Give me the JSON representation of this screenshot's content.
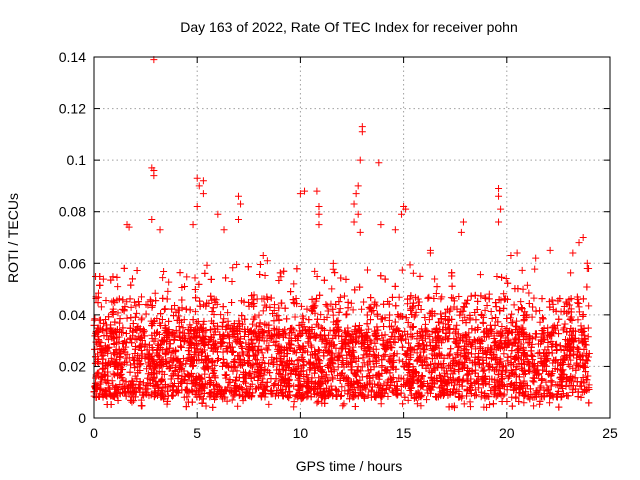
{
  "chart_data": {
    "type": "scatter",
    "title": "Day 163 of 2022, Rate Of TEC Index for receiver pohn",
    "xlabel": "GPS time / hours",
    "ylabel": "ROTI / TECUs",
    "xlim": [
      0,
      25
    ],
    "ylim": [
      0,
      0.14
    ],
    "xticks": [
      0,
      5,
      10,
      15,
      20,
      25
    ],
    "xtick_labels": [
      "0",
      "5",
      "10",
      "15",
      "20",
      "25"
    ],
    "yticks": [
      0,
      0.02,
      0.04,
      0.06,
      0.08,
      0.1,
      0.12,
      0.14
    ],
    "ytick_labels": [
      "0",
      "0.02",
      "0.04",
      "0.06",
      "0.08",
      "0.1",
      "0.12",
      "0.14"
    ],
    "grid": true,
    "marker": "+",
    "color": "#ff0000",
    "data_x_range": [
      0,
      24
    ],
    "series": [
      {
        "name": "ROTI",
        "points": [
          [
            2.9,
            0.139
          ],
          [
            13.0,
            0.113
          ],
          [
            13.0,
            0.111
          ],
          [
            12.9,
            0.1
          ],
          [
            13.8,
            0.099
          ],
          [
            2.8,
            0.097
          ],
          [
            2.9,
            0.096
          ],
          [
            2.9,
            0.094
          ],
          [
            5.0,
            0.093
          ],
          [
            5.3,
            0.092
          ],
          [
            5.1,
            0.09
          ],
          [
            12.8,
            0.09
          ],
          [
            19.6,
            0.089
          ],
          [
            10.8,
            0.088
          ],
          [
            5.3,
            0.087
          ],
          [
            10.0,
            0.087
          ],
          [
            10.2,
            0.088
          ],
          [
            12.7,
            0.087
          ],
          [
            7.0,
            0.086
          ],
          [
            19.6,
            0.086
          ],
          [
            7.1,
            0.083
          ],
          [
            12.6,
            0.083
          ],
          [
            15.0,
            0.082
          ],
          [
            5.0,
            0.082
          ],
          [
            10.9,
            0.082
          ],
          [
            15.1,
            0.081
          ],
          [
            19.7,
            0.081
          ],
          [
            10.9,
            0.079
          ],
          [
            6.0,
            0.079
          ],
          [
            12.8,
            0.079
          ],
          [
            14.9,
            0.079
          ],
          [
            2.8,
            0.077
          ],
          [
            7.0,
            0.077
          ],
          [
            12.6,
            0.076
          ],
          [
            17.9,
            0.076
          ],
          [
            19.6,
            0.076
          ],
          [
            1.6,
            0.075
          ],
          [
            4.8,
            0.075
          ],
          [
            10.9,
            0.075
          ],
          [
            13.9,
            0.075
          ],
          [
            1.7,
            0.074
          ],
          [
            3.2,
            0.073
          ],
          [
            6.3,
            0.073
          ],
          [
            12.9,
            0.072
          ],
          [
            14.6,
            0.073
          ],
          [
            17.8,
            0.072
          ],
          [
            16.3,
            0.065
          ],
          [
            16.3,
            0.064
          ],
          [
            20.2,
            0.063
          ],
          [
            22.1,
            0.065
          ],
          [
            23.2,
            0.064
          ],
          [
            23.5,
            0.068
          ],
          [
            23.7,
            0.07
          ],
          [
            23.9,
            0.06
          ],
          [
            23.9,
            0.058
          ],
          [
            0.1,
            0.047
          ],
          [
            20.5,
            0.064
          ],
          [
            21.4,
            0.062
          ],
          [
            8.2,
            0.063
          ],
          [
            8.4,
            0.061
          ]
        ]
      }
    ],
    "dense_band": {
      "description": "dense cloud of points between about 0.005 and 0.045 TECU/s across 0-24 h",
      "y_typical_min": 0.008,
      "y_typical_max": 0.035,
      "y_outer_max": 0.06,
      "x_range": [
        0,
        24
      ]
    }
  }
}
